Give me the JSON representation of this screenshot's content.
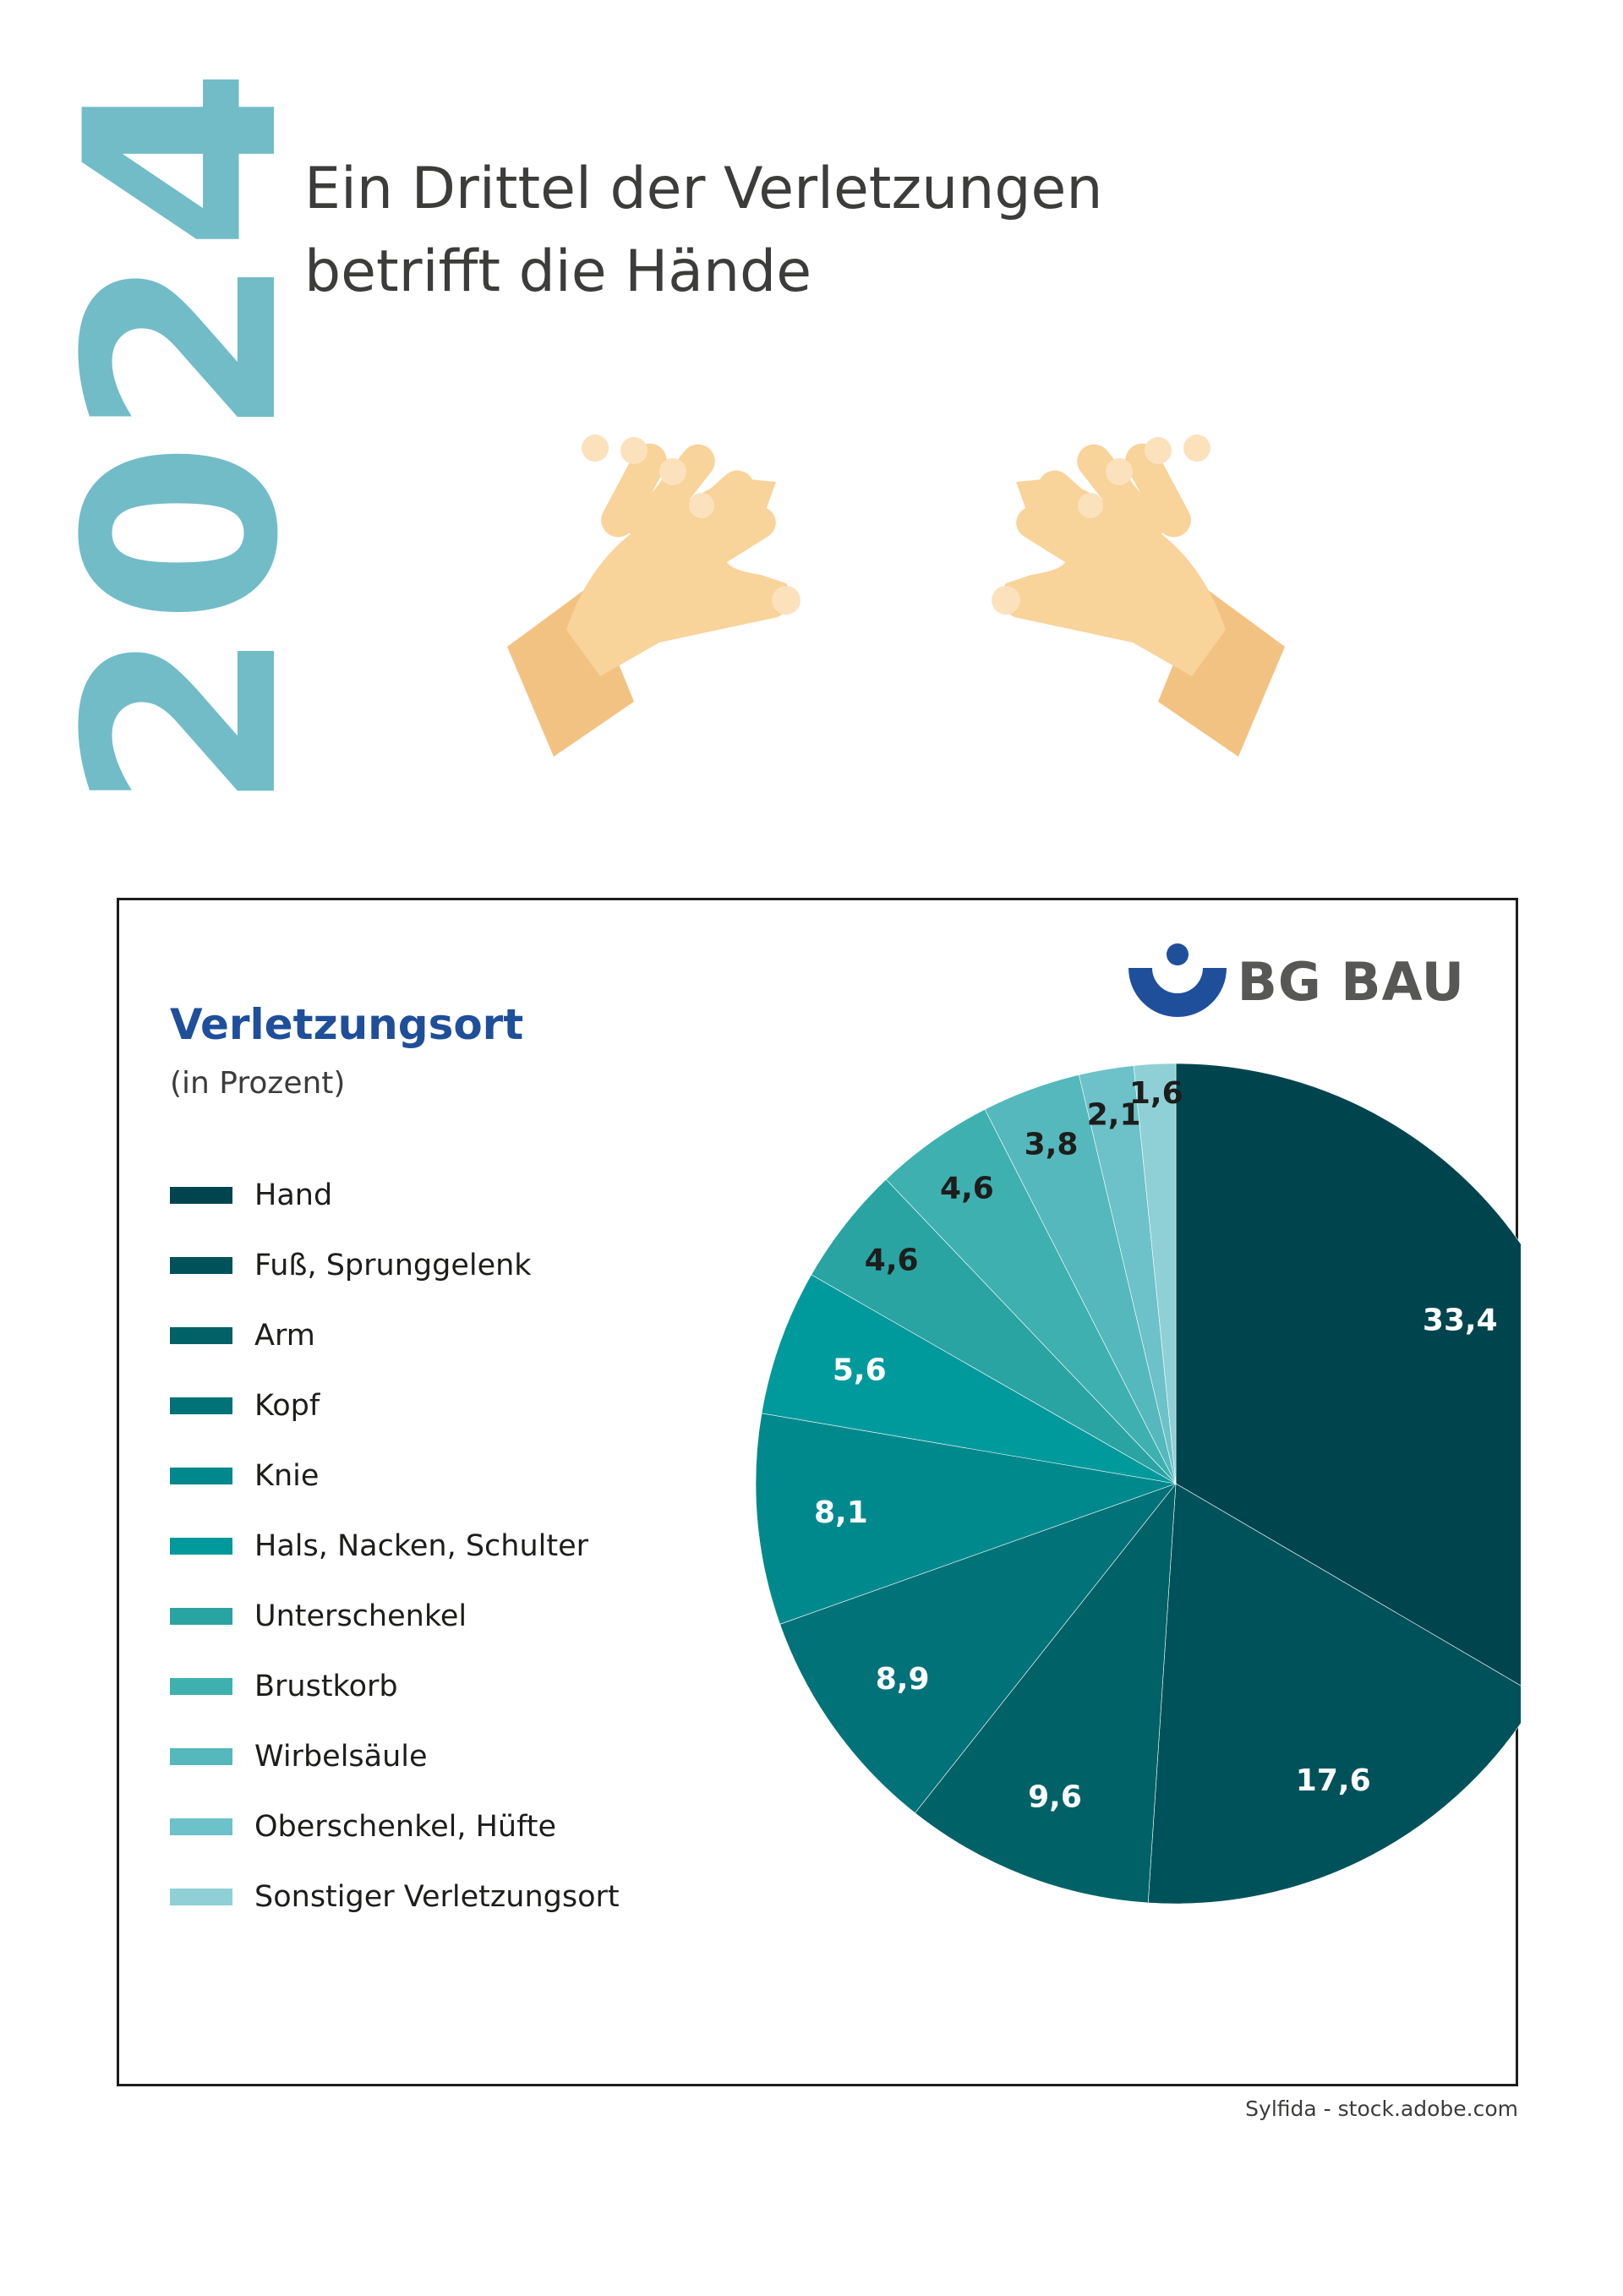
{
  "year": "2024",
  "headline": {
    "line1": "Ein Drittel der Verletzungen",
    "line2": "betrifft die Hände"
  },
  "illustration": "hands-icon",
  "logo": {
    "text": "BG BAU",
    "icon": "bg-bau-logo-icon"
  },
  "credit": "Sylfida - stock.adobe.com",
  "colors": {
    "year": "#72bcc8",
    "title": "#1f4f9b",
    "skin": "#f8d39a",
    "skin_shade": "#f2c283",
    "logo_blue": "#1f4f9b"
  },
  "chart_data": {
    "type": "pie",
    "title": "Verletzungsort",
    "subtitle": "(in Prozent)",
    "legend_position": "left",
    "categories": [
      "Hand",
      "Fuß, Sprunggelenk",
      "Arm",
      "Kopf",
      "Knie",
      "Hals, Nacken, Schulter",
      "Unterschenkel",
      "Brustkorb",
      "Wirbelsäule",
      "Oberschenkel, Hüfte",
      "Sonstiger Verletzungsort"
    ],
    "values": [
      33.4,
      17.6,
      9.6,
      8.9,
      8.1,
      5.6,
      4.6,
      4.6,
      3.8,
      2.1,
      1.6
    ],
    "labels": [
      "33,4",
      "17,6",
      "9,6",
      "8,9",
      "8,1",
      "5,6",
      "4,6",
      "4,6",
      "3,8",
      "2,1",
      "1,6"
    ],
    "colors": [
      "#00454e",
      "#00525a",
      "#006167",
      "#007278",
      "#00898c",
      "#00999c",
      "#2aa3a3",
      "#3fb0b0",
      "#55b8bd",
      "#6dc1c9",
      "#8fd0d6"
    ],
    "label_colors": [
      "#ffffff",
      "#ffffff",
      "#ffffff",
      "#ffffff",
      "#ffffff",
      "#ffffff",
      "#1d1d1b",
      "#1d1d1b",
      "#1d1d1b",
      "#1d1d1b",
      "#1d1d1b"
    ]
  }
}
